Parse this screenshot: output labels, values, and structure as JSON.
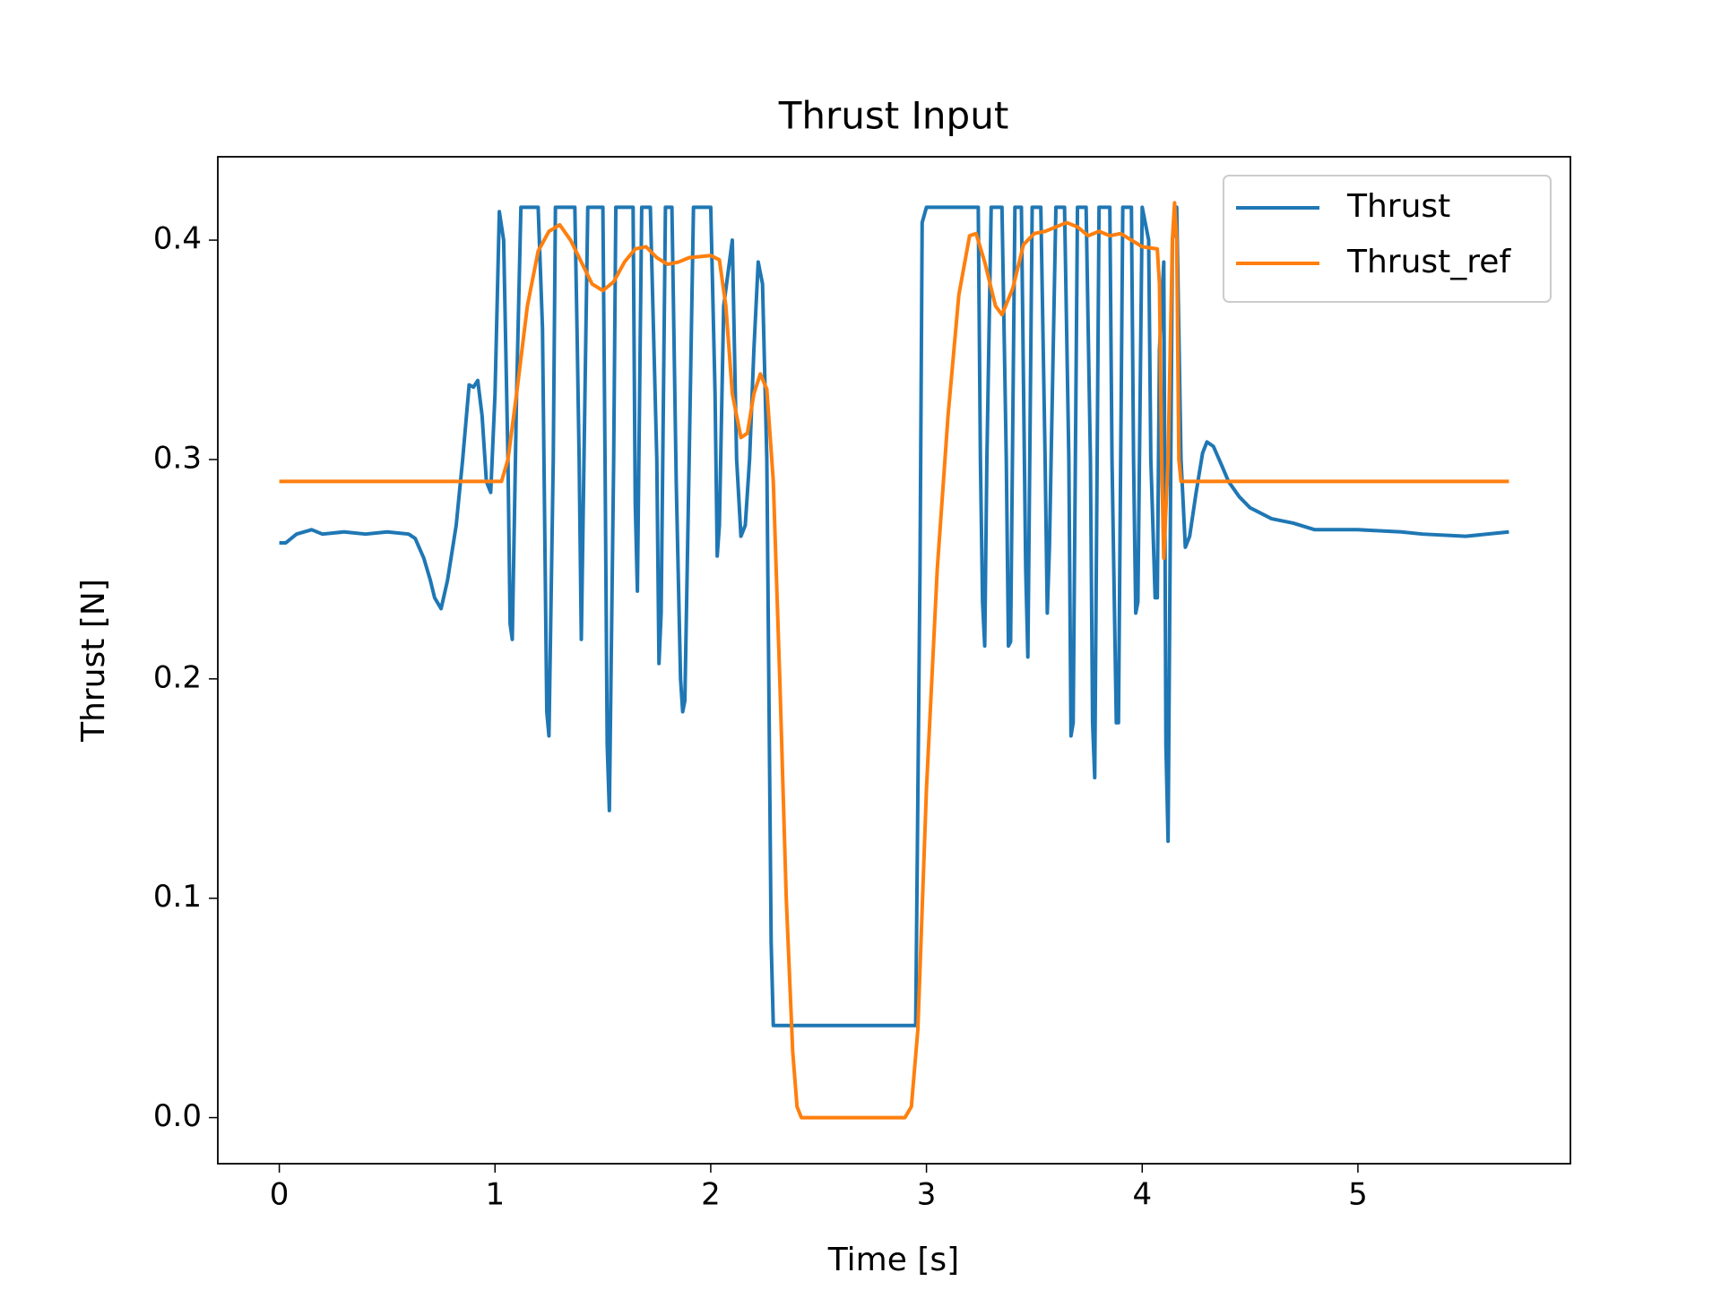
{
  "chart_data": {
    "type": "line",
    "title": "Thrust Input",
    "xlabel": "Time [s]",
    "ylabel": "Thrust [N]",
    "xlim": [
      -0.285,
      5.985
    ],
    "ylim": [
      -0.021,
      0.438
    ],
    "xticks": [
      0,
      1,
      2,
      3,
      4,
      5
    ],
    "yticks": [
      {
        "value": 0,
        "label": "0.0"
      },
      0.1,
      0.2,
      0.3,
      0.4
    ],
    "grid": false,
    "legend": "upper right",
    "series": [
      {
        "name": "Thrust",
        "color": "#1f77b4",
        "x": [
          0,
          0.03,
          0.08,
          0.15,
          0.2,
          0.3,
          0.4,
          0.5,
          0.6,
          0.63,
          0.67,
          0.7,
          0.72,
          0.75,
          0.78,
          0.82,
          0.85,
          0.88,
          0.9,
          0.92,
          0.94,
          0.96,
          0.98,
          1.0,
          1.02,
          1.04,
          1.06,
          1.07,
          1.08,
          1.1,
          1.12,
          1.2,
          1.22,
          1.24,
          1.25,
          1.27,
          1.28,
          1.37,
          1.38,
          1.39,
          1.4,
          1.42,
          1.43,
          1.5,
          1.51,
          1.52,
          1.53,
          1.55,
          1.56,
          1.64,
          1.65,
          1.66,
          1.68,
          1.72,
          1.75,
          1.76,
          1.77,
          1.79,
          1.82,
          1.84,
          1.86,
          1.87,
          1.88,
          1.9,
          1.92,
          2.0,
          2.02,
          2.03,
          2.04,
          2.06,
          2.1,
          2.12,
          2.14,
          2.16,
          2.18,
          2.2,
          2.22,
          2.24,
          2.26,
          2.28,
          2.29,
          2.95,
          2.97,
          2.98,
          3.0,
          3.24,
          3.25,
          3.26,
          3.27,
          3.28,
          3.3,
          3.35,
          3.37,
          3.38,
          3.39,
          3.41,
          3.44,
          3.46,
          3.47,
          3.49,
          3.53,
          3.55,
          3.56,
          3.57,
          3.6,
          3.64,
          3.66,
          3.67,
          3.68,
          3.7,
          3.74,
          3.76,
          3.77,
          3.78,
          3.8,
          3.85,
          3.86,
          3.88,
          3.89,
          3.91,
          3.95,
          3.96,
          3.97,
          3.98,
          4.0,
          4.03,
          4.04,
          4.06,
          4.07,
          4.08,
          4.1,
          4.11,
          4.12,
          4.14,
          4.16,
          4.18,
          4.2,
          4.22,
          4.25,
          4.28,
          4.3,
          4.33,
          4.37,
          4.4,
          4.45,
          4.5,
          4.6,
          4.7,
          4.8,
          5.0,
          5.2,
          5.3,
          5.5,
          5.7
        ],
        "values": [
          0.262,
          0.262,
          0.266,
          0.268,
          0.266,
          0.267,
          0.266,
          0.267,
          0.266,
          0.264,
          0.255,
          0.245,
          0.237,
          0.232,
          0.245,
          0.27,
          0.3,
          0.334,
          0.333,
          0.336,
          0.32,
          0.29,
          0.285,
          0.33,
          0.413,
          0.4,
          0.3,
          0.225,
          0.218,
          0.33,
          0.415,
          0.415,
          0.36,
          0.185,
          0.174,
          0.3,
          0.415,
          0.415,
          0.36,
          0.3,
          0.218,
          0.35,
          0.415,
          0.415,
          0.3,
          0.17,
          0.14,
          0.3,
          0.415,
          0.415,
          0.28,
          0.24,
          0.415,
          0.415,
          0.3,
          0.207,
          0.23,
          0.415,
          0.415,
          0.29,
          0.2,
          0.185,
          0.19,
          0.3,
          0.415,
          0.415,
          0.33,
          0.256,
          0.27,
          0.37,
          0.4,
          0.3,
          0.265,
          0.27,
          0.3,
          0.35,
          0.39,
          0.38,
          0.3,
          0.08,
          0.042,
          0.042,
          0.25,
          0.408,
          0.415,
          0.415,
          0.3,
          0.235,
          0.215,
          0.3,
          0.415,
          0.415,
          0.3,
          0.215,
          0.217,
          0.415,
          0.415,
          0.25,
          0.21,
          0.415,
          0.415,
          0.3,
          0.23,
          0.26,
          0.415,
          0.415,
          0.3,
          0.174,
          0.18,
          0.415,
          0.415,
          0.3,
          0.18,
          0.155,
          0.415,
          0.415,
          0.3,
          0.18,
          0.18,
          0.415,
          0.415,
          0.3,
          0.23,
          0.235,
          0.415,
          0.4,
          0.3,
          0.237,
          0.237,
          0.35,
          0.39,
          0.17,
          0.126,
          0.4,
          0.415,
          0.3,
          0.26,
          0.265,
          0.285,
          0.303,
          0.308,
          0.306,
          0.297,
          0.29,
          0.283,
          0.278,
          0.273,
          0.271,
          0.268,
          0.268,
          0.267,
          0.266,
          0.265,
          0.267
        ]
      },
      {
        "name": "Thrust_ref",
        "color": "#ff7f0e",
        "x": [
          0,
          1.0,
          1.03,
          1.06,
          1.1,
          1.15,
          1.2,
          1.25,
          1.3,
          1.35,
          1.4,
          1.45,
          1.5,
          1.55,
          1.6,
          1.65,
          1.7,
          1.75,
          1.8,
          1.85,
          1.9,
          2.0,
          2.04,
          2.07,
          2.1,
          2.14,
          2.17,
          2.2,
          2.23,
          2.26,
          2.29,
          2.32,
          2.35,
          2.38,
          2.4,
          2.42,
          2.9,
          2.93,
          2.96,
          3.0,
          3.05,
          3.1,
          3.15,
          3.2,
          3.23,
          3.27,
          3.32,
          3.35,
          3.4,
          3.45,
          3.5,
          3.55,
          3.6,
          3.65,
          3.7,
          3.75,
          3.8,
          3.85,
          3.9,
          3.95,
          4.0,
          4.07,
          4.08,
          4.09,
          4.1,
          4.12,
          4.14,
          4.15,
          4.16,
          4.17,
          4.18,
          5.7
        ],
        "values": [
          0.29,
          0.29,
          0.29,
          0.3,
          0.33,
          0.37,
          0.395,
          0.404,
          0.407,
          0.4,
          0.39,
          0.38,
          0.377,
          0.381,
          0.39,
          0.396,
          0.397,
          0.392,
          0.389,
          0.39,
          0.392,
          0.393,
          0.391,
          0.37,
          0.33,
          0.31,
          0.312,
          0.33,
          0.339,
          0.332,
          0.29,
          0.2,
          0.1,
          0.03,
          0.005,
          0,
          0,
          0.005,
          0.04,
          0.15,
          0.25,
          0.32,
          0.375,
          0.402,
          0.403,
          0.39,
          0.37,
          0.366,
          0.378,
          0.398,
          0.403,
          0.404,
          0.406,
          0.408,
          0.406,
          0.402,
          0.404,
          0.402,
          0.403,
          0.4,
          0.397,
          0.396,
          0.38,
          0.3,
          0.255,
          0.3,
          0.4,
          0.417,
          0.4,
          0.3,
          0.29,
          0.29
        ]
      }
    ]
  }
}
